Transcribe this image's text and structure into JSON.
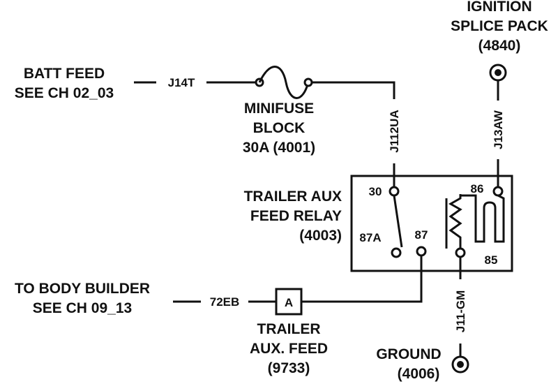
{
  "labels": {
    "batt_feed": [
      "BATT FEED",
      "SEE CH 02_03"
    ],
    "minifuse": [
      "MINIFUSE",
      "BLOCK",
      "30A (4001)"
    ],
    "ignition": [
      "IGNITION",
      "SPLICE PACK",
      "(4840)"
    ],
    "relay": [
      "TRAILER AUX",
      "FEED RELAY",
      "(4003)"
    ],
    "body_builder": [
      "TO BODY BUILDER",
      "SEE CH 09_13"
    ],
    "trailer_feed": [
      "TRAILER",
      "AUX. FEED",
      "(9733)"
    ],
    "ground": [
      "GROUND",
      "(4006)"
    ]
  },
  "wires": {
    "j14t": "J14T",
    "j112ua": "J112UA",
    "j13aw": "J13AW",
    "w72eb": "72EB",
    "j11gm": "J11-GM"
  },
  "pins": {
    "p30": "30",
    "p86": "86",
    "p87a": "87A",
    "p87": "87",
    "p85": "85"
  },
  "connector": {
    "letter": "A"
  }
}
